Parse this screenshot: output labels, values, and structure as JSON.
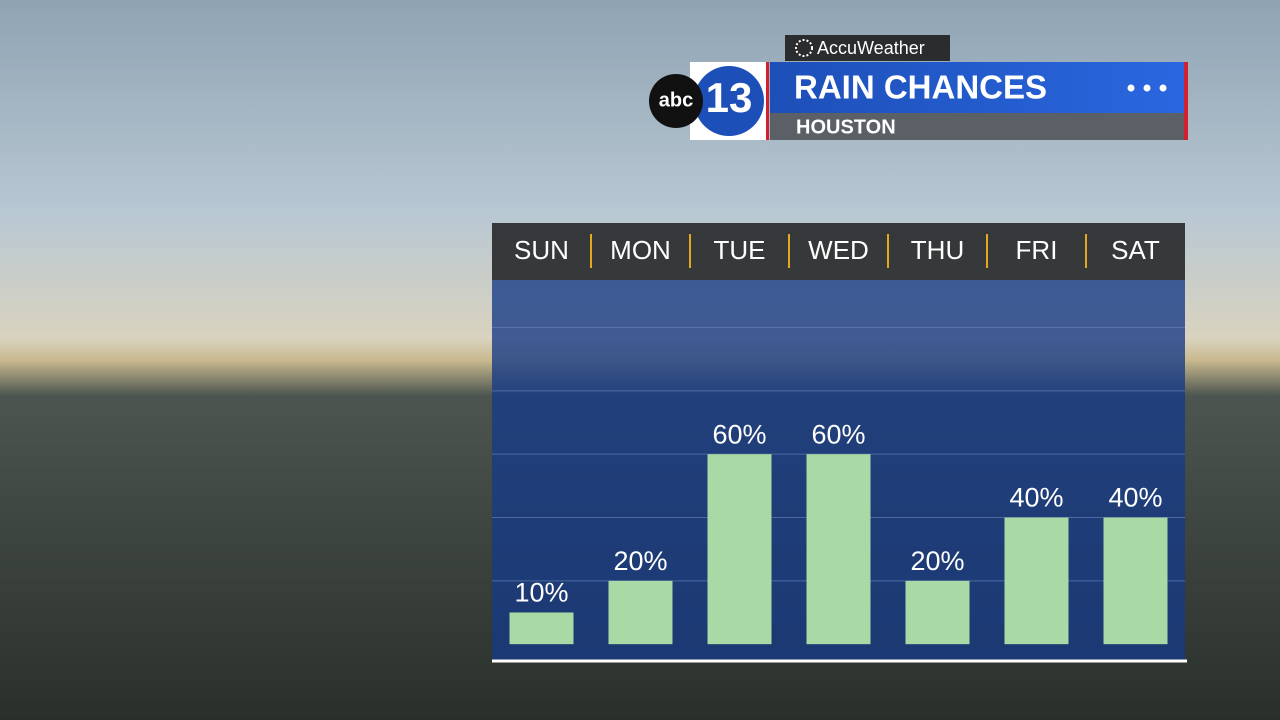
{
  "brand": {
    "network": "abc",
    "channel": "13",
    "provider": "AccuWeather"
  },
  "chart_data": {
    "type": "bar",
    "title": "RAIN CHANCES",
    "subtitle": "HOUSTON",
    "categories": [
      "SUN",
      "MON",
      "TUE",
      "WED",
      "THU",
      "FRI",
      "SAT"
    ],
    "values": [
      10,
      20,
      60,
      60,
      20,
      40,
      40
    ],
    "value_labels": [
      "10%",
      "20%",
      "60%",
      "60%",
      "20%",
      "40%",
      "40%"
    ],
    "color": "#a9d9a4",
    "ylim": [
      -5,
      115
    ],
    "yticks": [
      20,
      40,
      60,
      80,
      100
    ],
    "grid": true
  }
}
